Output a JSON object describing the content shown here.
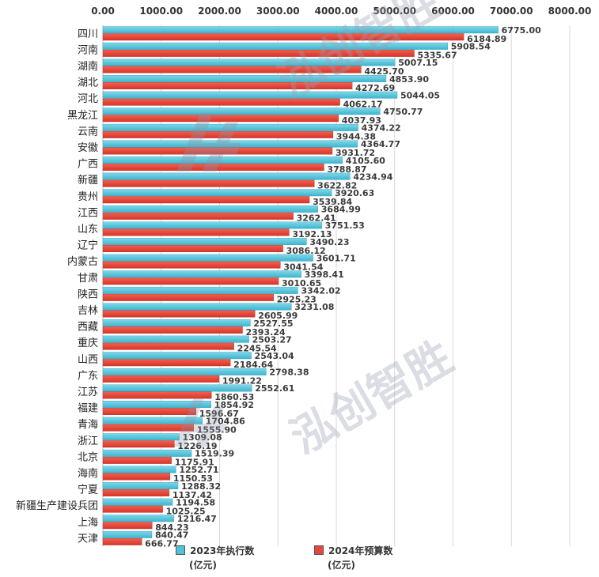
{
  "colors": {
    "series2023": "#4fc3d9",
    "series2024": "#e8453c",
    "grid": "#d9d9d9",
    "watermark": "#9aa0b4"
  },
  "watermark": {
    "text": "泓创智胜"
  },
  "legend": {
    "items": [
      {
        "name": "2023年执行数",
        "unit": "(亿元)"
      },
      {
        "name": "2024年预算数",
        "unit": "(亿元)"
      }
    ]
  },
  "chart_data": {
    "type": "bar",
    "orientation": "horizontal",
    "x_axis_position": "top",
    "xlim": [
      0,
      8000
    ],
    "xticks": [
      "0.00",
      "1000.00",
      "2000.00",
      "3000.00",
      "4000.00",
      "5000.00",
      "6000.00",
      "7000.00",
      "8000.00"
    ],
    "grid": true,
    "legend_position": "bottom",
    "categories": [
      "四川",
      "河南",
      "湖南",
      "湖北",
      "河北",
      "黑龙江",
      "云南",
      "安徽",
      "广西",
      "新疆",
      "贵州",
      "江西",
      "山东",
      "辽宁",
      "内蒙古",
      "甘肃",
      "陕西",
      "吉林",
      "西藏",
      "重庆",
      "山西",
      "广东",
      "江苏",
      "福建",
      "青海",
      "浙江",
      "北京",
      "海南",
      "宁夏",
      "新疆生产建设兵团",
      "上海",
      "天津"
    ],
    "series": [
      {
        "name": "2023年执行数",
        "values": [
          6775.0,
          5908.54,
          5007.15,
          4853.9,
          5044.05,
          4750.77,
          4374.22,
          4364.77,
          4105.6,
          4234.94,
          3920.63,
          3684.99,
          3751.53,
          3490.23,
          3601.71,
          3398.41,
          3342.02,
          3231.08,
          2527.55,
          2503.27,
          2543.04,
          2798.38,
          2552.61,
          1854.92,
          1704.86,
          1309.08,
          1519.39,
          1252.71,
          1288.32,
          1194.58,
          1216.47,
          840.47
        ],
        "labels": [
          "6775.00",
          "5908.54",
          "5007.15",
          "4853.90",
          "5044.05",
          "4750.77",
          "4374.22",
          "4364.77",
          "4105.60",
          "4234.94",
          "3920.63",
          "3684.99",
          "3751.53",
          "3490.23",
          "3601.71",
          "3398.41",
          "3342.02",
          "3231.08",
          "2527.55",
          "2503.27",
          "2543.04",
          "2798.38",
          "2552.61",
          "1854.92",
          "1704.86",
          "1309.08",
          "1519.39",
          "1252.71",
          "1288.32",
          "1194.58",
          "1216.47",
          "840.47"
        ]
      },
      {
        "name": "2024年预算数",
        "values": [
          6184.89,
          5335.67,
          4425.7,
          4272.69,
          4062.17,
          4037.93,
          3944.38,
          3931.72,
          3788.87,
          3622.82,
          3539.84,
          3262.41,
          3192.13,
          3086.12,
          3041.54,
          3010.65,
          2925.23,
          2605.99,
          2393.24,
          2245.54,
          2184.64,
          1991.22,
          1860.53,
          1596.67,
          1555.9,
          1226.19,
          1175.91,
          1150.53,
          1137.42,
          1025.25,
          844.23,
          666.77
        ],
        "labels": [
          "6184.89",
          "5335.67",
          "4425.70",
          "4272.69",
          "4062.17",
          "4037.93",
          "3944.38",
          "3931.72",
          "3788.87",
          "3622.82",
          "3539.84",
          "3262.41",
          "3192.13",
          "3086.12",
          "3041.54",
          "3010.65",
          "2925.23",
          "2605.99",
          "2393.24",
          "2245.54",
          "2184.64",
          "1991.22",
          "1860.53",
          "1596.67",
          "1555.90",
          "1226.19",
          "1175.91",
          "1150.53",
          "1137.42",
          "1025.25",
          "844.23",
          "666.77"
        ]
      }
    ]
  }
}
